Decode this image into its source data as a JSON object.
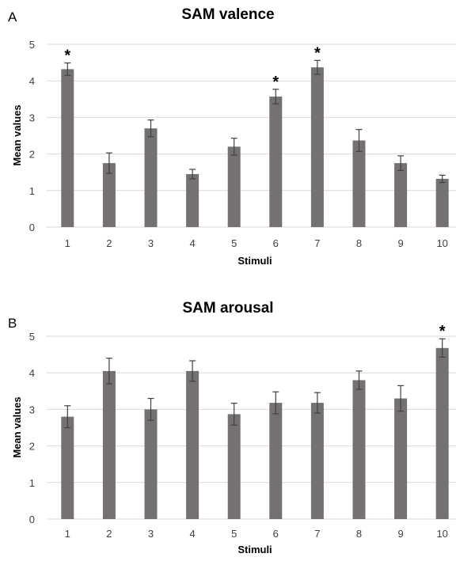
{
  "chart_data": [
    {
      "panel": "A",
      "type": "bar",
      "title": "SAM valence",
      "xlabel": "Stimuli",
      "ylabel": "Mean values",
      "categories": [
        "1",
        "2",
        "3",
        "4",
        "5",
        "6",
        "7",
        "8",
        "9",
        "10"
      ],
      "values": [
        4.32,
        1.75,
        2.7,
        1.45,
        2.2,
        3.57,
        4.37,
        2.37,
        1.75,
        1.32
      ],
      "errors": [
        0.17,
        0.28,
        0.23,
        0.13,
        0.23,
        0.2,
        0.19,
        0.3,
        0.2,
        0.1
      ],
      "significant": [
        true,
        false,
        false,
        false,
        false,
        true,
        true,
        false,
        false,
        false
      ],
      "significance_marker": "*",
      "ylim": [
        0,
        5
      ],
      "yticks": [
        "0",
        "1",
        "2",
        "3",
        "4",
        "5"
      ],
      "grid": true,
      "bar_color": "#767171",
      "grid_color": "#d9d9d9"
    },
    {
      "panel": "B",
      "type": "bar",
      "title": "SAM arousal",
      "xlabel": "Stimuli",
      "ylabel": "Mean values",
      "categories": [
        "1",
        "2",
        "3",
        "4",
        "5",
        "6",
        "7",
        "8",
        "9",
        "10"
      ],
      "values": [
        2.8,
        4.05,
        3.0,
        4.05,
        2.87,
        3.18,
        3.18,
        3.8,
        3.3,
        4.68
      ],
      "errors": [
        0.3,
        0.35,
        0.3,
        0.28,
        0.3,
        0.3,
        0.28,
        0.25,
        0.35,
        0.25
      ],
      "significant": [
        false,
        false,
        false,
        false,
        false,
        false,
        false,
        false,
        false,
        true
      ],
      "significance_marker": "*",
      "ylim": [
        0,
        5
      ],
      "yticks": [
        "0",
        "1",
        "2",
        "3",
        "4",
        "5"
      ],
      "grid": true,
      "bar_color": "#767171",
      "grid_color": "#d9d9d9"
    }
  ]
}
